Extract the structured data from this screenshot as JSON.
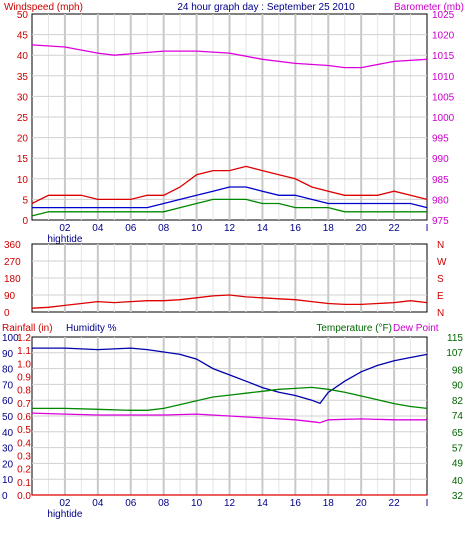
{
  "chart_data": [
    {
      "type": "line",
      "title": "24 hour graph day : September 25 2010",
      "left_axis_label": "Windspeed (mph)",
      "right_axis_label": "Barometer (mb)",
      "x_ticks": [
        "02",
        "04",
        "06",
        "08",
        "10",
        "12",
        "14",
        "16",
        "18",
        "20",
        "22"
      ],
      "x_annotation": "hightide",
      "x_end_tick": "I",
      "ylim_left": [
        0,
        50
      ],
      "yticks_left": [
        0,
        5,
        10,
        15,
        20,
        25,
        30,
        35,
        40,
        45,
        50
      ],
      "ylim_right": [
        975,
        1025
      ],
      "yticks_right": [
        975,
        980,
        985,
        990,
        995,
        1000,
        1005,
        1010,
        1015,
        1020,
        1025
      ],
      "series": [
        {
          "axis": "left",
          "color": "#dd0000",
          "x": [
            0,
            1,
            2,
            3,
            4,
            5,
            6,
            7,
            8,
            9,
            10,
            11,
            12,
            13,
            14,
            15,
            16,
            17,
            18,
            19,
            20,
            21,
            22,
            23,
            24
          ],
          "values": [
            4,
            6,
            6,
            6,
            5,
            5,
            5,
            6,
            6,
            8,
            11,
            12,
            12,
            13,
            12,
            11,
            10,
            8,
            7,
            6,
            6,
            6,
            7,
            6,
            5
          ]
        },
        {
          "axis": "left",
          "color": "#0000cc",
          "x": [
            0,
            1,
            2,
            3,
            4,
            5,
            6,
            7,
            8,
            9,
            10,
            11,
            12,
            13,
            14,
            15,
            16,
            17,
            18,
            19,
            20,
            21,
            22,
            23,
            24
          ],
          "values": [
            3,
            3,
            3,
            3,
            3,
            3,
            3,
            3,
            4,
            5,
            6,
            7,
            8,
            8,
            7,
            6,
            6,
            5,
            4,
            4,
            4,
            4,
            4,
            4,
            3
          ]
        },
        {
          "axis": "left",
          "color": "#008800",
          "x": [
            0,
            1,
            2,
            3,
            4,
            5,
            6,
            7,
            8,
            9,
            10,
            11,
            12,
            13,
            14,
            15,
            16,
            17,
            18,
            19,
            20,
            21,
            22,
            23,
            24
          ],
          "values": [
            1,
            2,
            2,
            2,
            2,
            2,
            2,
            2,
            2,
            3,
            4,
            5,
            5,
            5,
            4,
            4,
            3,
            3,
            3,
            2,
            2,
            2,
            2,
            2,
            2
          ]
        },
        {
          "axis": "right",
          "color": "#dd00dd",
          "x": [
            0,
            2,
            4,
            5,
            8,
            10,
            12,
            14,
            16,
            18,
            19,
            20,
            22,
            24
          ],
          "values": [
            1017.5,
            1017,
            1015.5,
            1015,
            1016,
            1016,
            1015.5,
            1014,
            1013,
            1012.5,
            1012,
            1012,
            1013.5,
            1014
          ]
        }
      ]
    },
    {
      "type": "line",
      "ylim": [
        0,
        360
      ],
      "yticks": [
        0,
        90,
        180,
        270,
        360
      ],
      "right_labels": [
        "N",
        "W",
        "S",
        "E",
        "N"
      ],
      "series": [
        {
          "color": "#dd0000",
          "x": [
            0,
            1,
            2,
            3,
            4,
            5,
            6,
            7,
            8,
            9,
            10,
            11,
            12,
            13,
            14,
            15,
            16,
            17,
            18,
            19,
            20,
            21,
            22,
            23,
            24
          ],
          "values": [
            20,
            25,
            35,
            45,
            55,
            50,
            55,
            60,
            60,
            65,
            75,
            85,
            90,
            80,
            75,
            70,
            65,
            55,
            45,
            40,
            40,
            45,
            50,
            60,
            50
          ]
        }
      ]
    },
    {
      "type": "line",
      "header_left": [
        "Rainfall (in)",
        "Humidity %"
      ],
      "header_right": [
        "Temperature (°F)",
        "Dew Point"
      ],
      "ylim_rain": [
        0,
        1.2
      ],
      "yticks_rain": [
        "0.0",
        "0.1",
        "0.2",
        "0.3",
        "0.4",
        "0.5",
        "0.6",
        "0.7",
        "0.8",
        "0.9",
        "1.0",
        "1.1",
        "1.2"
      ],
      "ylim_humidity": [
        0,
        100
      ],
      "yticks_humidity": [
        0,
        10,
        20,
        30,
        40,
        50,
        60,
        70,
        80,
        90,
        100
      ],
      "ylim_temp": [
        32,
        115
      ],
      "yticks_temp": [
        32,
        40,
        49,
        57,
        65,
        74,
        82,
        90,
        98,
        107,
        115
      ],
      "series": [
        {
          "name": "Humidity %",
          "axis": "humidity",
          "color": "#0000aa",
          "x": [
            0,
            2,
            4,
            6,
            7,
            9,
            10,
            11,
            12,
            13,
            14,
            15,
            16,
            17,
            17.5,
            18,
            19,
            20,
            21,
            22,
            23,
            24
          ],
          "values": [
            93,
            93,
            92,
            93,
            92,
            89,
            86,
            80,
            76,
            72,
            68,
            65,
            63,
            60,
            58,
            65,
            72,
            78,
            82,
            85,
            87,
            89
          ]
        },
        {
          "name": "Temperature (°F)",
          "axis": "temp",
          "color": "#008800",
          "x": [
            0,
            2,
            4,
            6,
            7,
            8,
            9,
            10,
            11,
            12,
            13,
            14,
            15,
            16,
            17,
            18,
            19,
            20,
            21,
            22,
            23,
            24
          ],
          "values": [
            77.5,
            77.5,
            77,
            76.5,
            76.5,
            77.5,
            79.5,
            81.5,
            83.5,
            84.5,
            85.5,
            86.5,
            87.5,
            88,
            88.5,
            87.5,
            86,
            84,
            82,
            80,
            78.5,
            77.5
          ]
        },
        {
          "name": "Dew Point",
          "axis": "temp",
          "color": "#dd00dd",
          "x": [
            0,
            2,
            4,
            6,
            8,
            10,
            12,
            14,
            16,
            17,
            17.5,
            18,
            20,
            22,
            24
          ],
          "values": [
            75,
            74.5,
            74,
            74,
            74,
            74.5,
            73.5,
            72.5,
            71.5,
            70.5,
            70,
            71.5,
            72,
            71.5,
            71.5
          ]
        },
        {
          "name": "Rainfall (in)",
          "axis": "rain",
          "color": "#dd0000",
          "x": [
            0,
            24
          ],
          "values": [
            0,
            0
          ]
        }
      ]
    }
  ]
}
